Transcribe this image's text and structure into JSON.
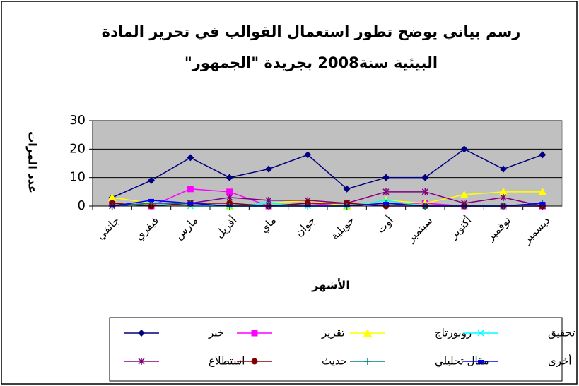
{
  "chart_data": {
    "type": "line",
    "title": [
      "رسم بياني يوضح تطور استعمال القوالب في تحرير المادة",
      "البيئية سنة2008 بجريدة \"الجمهور\""
    ],
    "y_label": "عدد المرات",
    "x_label": "الأشهر",
    "categories": [
      "جانفي",
      "فيفري",
      "مارس",
      "أفريل",
      "ماي",
      "جوان",
      "جويلية",
      "أوت",
      "سبتمبر",
      "أكتوبر",
      "نوفمبر",
      "ديسمبر"
    ],
    "ylim": [
      0,
      30
    ],
    "yticks": [
      0,
      10,
      20,
      30
    ],
    "grid": true,
    "series": [
      {
        "name": "خبر",
        "color": "#000080",
        "marker": "diamond",
        "values": [
          3,
          9,
          17,
          10,
          13,
          18,
          6,
          10,
          10,
          20,
          13,
          18
        ]
      },
      {
        "name": "تقرير",
        "color": "#ff00ff",
        "marker": "square",
        "values": [
          1,
          0,
          6,
          5,
          0,
          1,
          0,
          1,
          1,
          0,
          0,
          0
        ]
      },
      {
        "name": "روبورتاج",
        "color": "#ffff00",
        "marker": "triangle",
        "values": [
          3,
          1,
          1,
          0,
          1,
          2,
          0,
          2,
          1,
          4,
          5,
          5
        ]
      },
      {
        "name": "تحقيق",
        "color": "#00ffff",
        "marker": "x",
        "values": [
          0,
          1,
          0,
          0,
          1,
          0,
          0,
          2,
          0,
          0,
          0,
          0
        ]
      },
      {
        "name": "استطلاع",
        "color": "#800080",
        "marker": "star",
        "values": [
          0,
          1,
          1,
          3,
          2,
          2,
          1,
          5,
          5,
          1,
          3,
          0
        ]
      },
      {
        "name": "حديث",
        "color": "#800000",
        "marker": "circle",
        "values": [
          1,
          0,
          1,
          1,
          0,
          1,
          1,
          0,
          0,
          0,
          0,
          0
        ]
      },
      {
        "name": "مقال تحليلي",
        "color": "#008080",
        "marker": "plus",
        "values": [
          0,
          1,
          1,
          0,
          0,
          0,
          0,
          1,
          0,
          0,
          0,
          1
        ]
      },
      {
        "name": "أخرى",
        "color": "#0000ff",
        "marker": "dash",
        "values": [
          0,
          2,
          1,
          0,
          0,
          0,
          0,
          1,
          0,
          0,
          0,
          1
        ]
      }
    ]
  }
}
